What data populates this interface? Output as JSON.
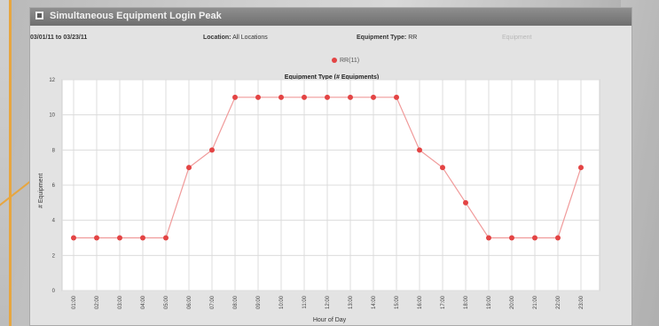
{
  "panel": {
    "title": "Simultaneous Equipment Login Peak"
  },
  "filters": {
    "date_range": "03/01/11 to 03/23/11",
    "location_label": "Location:",
    "location_value": "All Locations",
    "equipment_type_label": "Equipment Type:",
    "equipment_type_value": "RR",
    "extra_label": "Equipment"
  },
  "colors": {
    "series": "#e34444",
    "grid": "#dcdcdc",
    "header": "#7a7a7a"
  },
  "chart_data": {
    "type": "line",
    "title": "Equipment Type (# Equipments)",
    "xlabel": "Hour of Day",
    "ylabel": "# Equipment",
    "ylim": [
      0,
      12
    ],
    "yticks": [
      0,
      2,
      4,
      6,
      8,
      10,
      12
    ],
    "grid": true,
    "legend": "top-center",
    "categories": [
      "01:00",
      "02:00",
      "03:00",
      "04:00",
      "05:00",
      "06:00",
      "07:00",
      "08:00",
      "09:00",
      "10:00",
      "11:00",
      "12:00",
      "13:00",
      "14:00",
      "15:00",
      "16:00",
      "17:00",
      "18:00",
      "19:00",
      "20:00",
      "21:00",
      "22:00",
      "23:00"
    ],
    "series": [
      {
        "name": "RR(11)",
        "values": [
          3,
          3,
          3,
          3,
          3,
          7,
          8,
          11,
          11,
          11,
          11,
          11,
          11,
          11,
          11,
          8,
          7,
          5,
          3,
          3,
          3,
          3,
          7
        ]
      }
    ]
  }
}
